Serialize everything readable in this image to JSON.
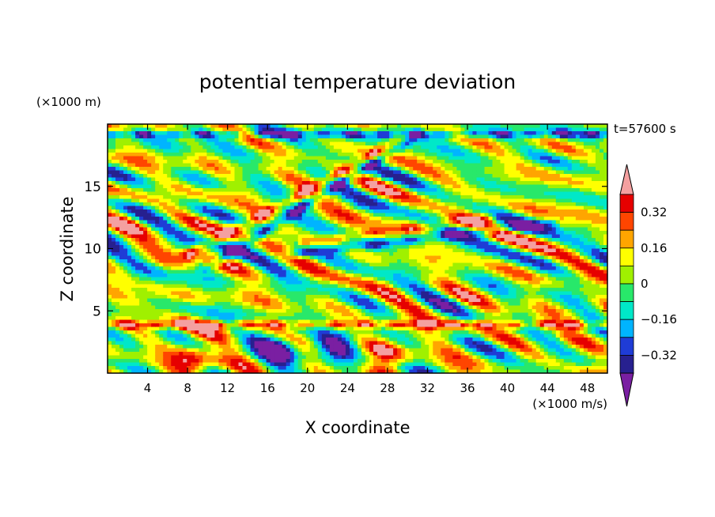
{
  "chart_data": {
    "type": "heatmap",
    "title": "potential temperature deviation",
    "xlabel": "X coordinate",
    "ylabel": "Z coordinate",
    "x_unit": "(×1000 m/s)",
    "y_unit": "(×1000 m)",
    "time_label": "t=57600 s",
    "xlim": [
      0,
      50
    ],
    "ylim": [
      0,
      20
    ],
    "x_ticks": [
      "4",
      "8",
      "12",
      "16",
      "20",
      "24",
      "28",
      "32",
      "36",
      "40",
      "44",
      "48"
    ],
    "y_ticks": [
      "5",
      "10",
      "15"
    ],
    "colorbar": {
      "labels": [
        "0.32",
        "0.16",
        "0",
        "-0.16",
        "-0.32"
      ],
      "levels": [
        -0.4,
        -0.32,
        -0.24,
        -0.16,
        -0.08,
        0,
        0.08,
        0.16,
        0.24,
        0.32,
        0.4
      ],
      "colors": [
        "#7a1fa2",
        "#27208f",
        "#1f3cd6",
        "#00b4ff",
        "#00e8c8",
        "#28e86a",
        "#a0f000",
        "#ffff00",
        "#ffa500",
        "#ff4500",
        "#e60000",
        "#f4a0a0"
      ],
      "extend": "both"
    },
    "features": [
      {
        "kind": "tilted-band",
        "value": 0.36,
        "from": [
          8,
          9.5
        ],
        "to": [
          30,
          19
        ]
      },
      {
        "kind": "tilted-band",
        "value": -0.4,
        "from": [
          10,
          8.5
        ],
        "to": [
          31,
          19.2
        ]
      },
      {
        "kind": "tilted-band",
        "value": 0.25,
        "from": [
          20,
          10.5
        ],
        "to": [
          38,
          12.5
        ]
      },
      {
        "kind": "tilted-band",
        "value": -0.35,
        "from": [
          18,
          9.5
        ],
        "to": [
          44,
          12
        ]
      },
      {
        "kind": "layer",
        "value": 0.42,
        "z": 3.9,
        "x_range": [
          0,
          50
        ]
      },
      {
        "kind": "layer",
        "value": -0.42,
        "z": 19.2,
        "x_range": [
          0,
          50
        ]
      },
      {
        "kind": "blob",
        "value": 0.36,
        "center": [
          8.5,
          1.2
        ]
      },
      {
        "kind": "blob",
        "value": 0.3,
        "center": [
          28,
          1.5
        ]
      },
      {
        "kind": "blob",
        "value": -0.4,
        "center": [
          17,
          2
        ]
      },
      {
        "kind": "blob",
        "value": -0.38,
        "center": [
          23,
          2.2
        ]
      }
    ]
  }
}
